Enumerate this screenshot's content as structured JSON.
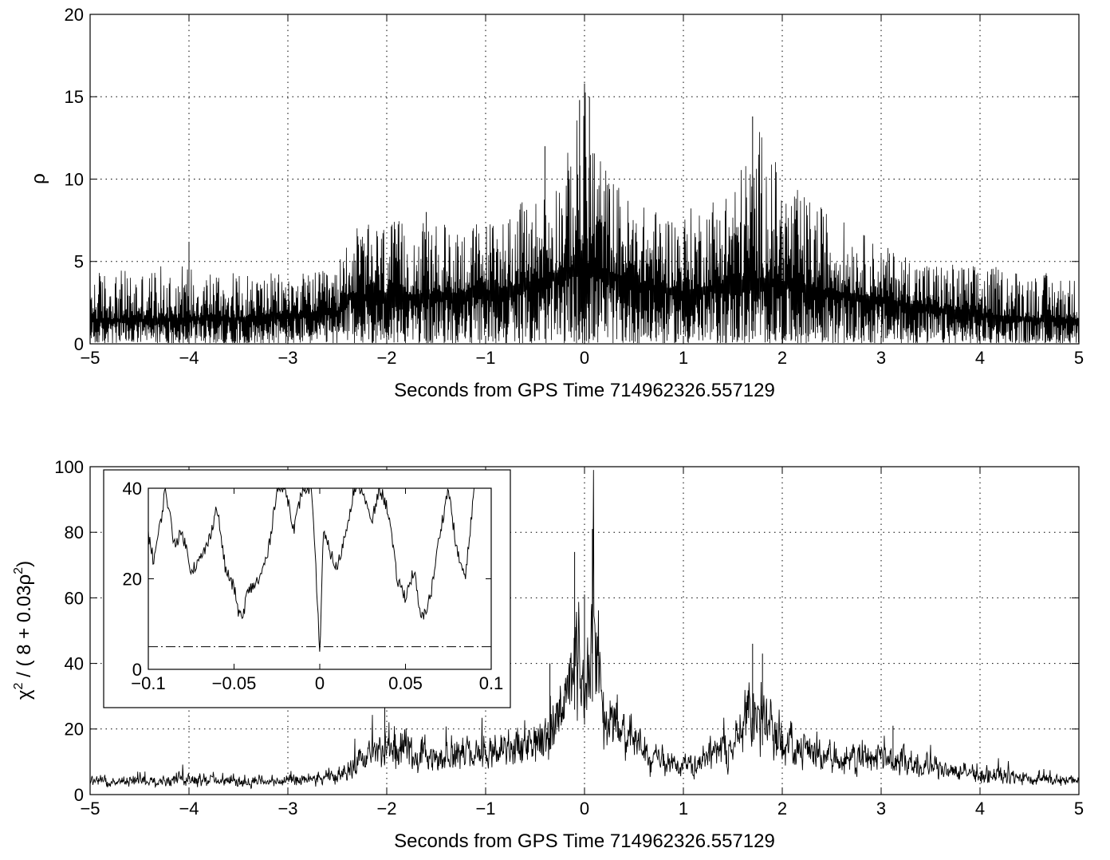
{
  "chart_data": [
    {
      "type": "line",
      "title": "",
      "xlabel": "Seconds from GPS Time 714962326.557129",
      "ylabel": "ρ",
      "xlim": [
        -5,
        5
      ],
      "ylim": [
        0,
        20
      ],
      "xticks": [
        -5,
        -4,
        -3,
        -2,
        -1,
        0,
        1,
        2,
        3,
        4,
        5
      ],
      "xtick_labels": [
        "−5",
        "−4",
        "−3",
        "−2",
        "−1",
        "0",
        "1",
        "2",
        "3",
        "4",
        "5"
      ],
      "yticks": [
        0,
        5,
        10,
        15,
        20
      ],
      "ytick_labels": [
        "0",
        "5",
        "10",
        "15",
        "20"
      ],
      "grid": true,
      "series": [
        {
          "color": "#000000",
          "style": "dense noisy trace",
          "x": [
            -5.0,
            -4.5,
            -4.0,
            -3.5,
            -3.0,
            -2.5,
            -2.4,
            -2.0,
            -1.5,
            -1.0,
            -0.5,
            -0.2,
            0.0,
            0.2,
            0.5,
            1.0,
            1.5,
            1.8,
            2.0,
            2.5,
            3.0,
            3.5,
            4.0,
            4.5,
            5.0
          ],
          "envelope": [
            4.5,
            4.5,
            5.0,
            4.3,
            4.3,
            4.5,
            7.0,
            7.5,
            7.3,
            7.5,
            9.0,
            11.0,
            15.8,
            11.0,
            8.5,
            8.0,
            10.0,
            13.5,
            10.0,
            8.0,
            6.0,
            5.0,
            4.8,
            4.5,
            4.0
          ],
          "baseline": [
            1.5,
            1.5,
            1.6,
            1.6,
            1.8,
            2.0,
            3.0,
            3.0,
            3.0,
            3.2,
            3.8,
            4.5,
            5.0,
            4.5,
            3.8,
            3.2,
            3.8,
            4.0,
            3.8,
            3.2,
            2.8,
            2.2,
            1.8,
            1.6,
            1.5
          ],
          "peaks": [
            {
              "x": 0.0,
              "y": 15.8
            },
            {
              "x": 0.05,
              "y": 15.0
            },
            {
              "x": -0.05,
              "y": 14.8
            },
            {
              "x": 1.7,
              "y": 13.8
            },
            {
              "x": -0.4,
              "y": 12.0
            },
            {
              "x": -1.6,
              "y": 8.0
            },
            {
              "x": -4.0,
              "y": 6.2
            }
          ]
        }
      ]
    },
    {
      "type": "line",
      "title": "",
      "xlabel": "Seconds from GPS Time 714962326.557129",
      "ylabel": "χ² / ( 8 + 0.03ρ² )",
      "ylabel_parts": [
        "χ",
        "2",
        " / ( 8 + 0.03ρ",
        "2",
        ")"
      ],
      "xlim": [
        -5,
        5
      ],
      "ylim": [
        0,
        100
      ],
      "xticks": [
        -5,
        -4,
        -3,
        -2,
        -1,
        0,
        1,
        2,
        3,
        4,
        5
      ],
      "xtick_labels": [
        "−5",
        "−4",
        "−3",
        "−2",
        "−1",
        "0",
        "1",
        "2",
        "3",
        "4",
        "5"
      ],
      "yticks": [
        0,
        20,
        40,
        60,
        80,
        100
      ],
      "ytick_labels": [
        "0",
        "20",
        "40",
        "60",
        "80",
        "100"
      ],
      "grid": true,
      "series": [
        {
          "color": "#000000",
          "style": "noisy trace",
          "x": [
            -5.0,
            -4.5,
            -4.0,
            -3.5,
            -3.0,
            -2.5,
            -2.4,
            -2.0,
            -1.5,
            -1.0,
            -0.5,
            -0.2,
            -0.1,
            0.0,
            0.1,
            0.2,
            0.5,
            1.0,
            1.5,
            1.75,
            2.0,
            2.5,
            3.0,
            3.5,
            4.0,
            4.5,
            5.0
          ],
          "values": [
            4,
            4,
            5,
            4,
            4,
            5,
            8,
            14,
            12,
            12,
            16,
            25,
            45,
            30,
            50,
            25,
            15,
            8,
            15,
            30,
            15,
            12,
            12,
            8,
            6,
            5,
            4
          ],
          "peaks": [
            {
              "x": -0.1,
              "y": 74
            },
            {
              "x": 0.08,
              "y": 81
            },
            {
              "x": 0.0,
              "y": 61
            },
            {
              "x": 1.7,
              "y": 46
            },
            {
              "x": 1.8,
              "y": 43
            },
            {
              "x": -2.02,
              "y": 27
            },
            {
              "x": -0.35,
              "y": 40
            },
            {
              "x": 3.12,
              "y": 21
            }
          ]
        }
      ],
      "inset": {
        "xlim": [
          -0.1,
          0.1
        ],
        "ylim": [
          0,
          40
        ],
        "xticks": [
          -0.1,
          -0.05,
          0,
          0.05,
          0.1
        ],
        "xtick_labels": [
          "−0.1",
          "−0.05",
          "0",
          "0.05",
          "0.1"
        ],
        "yticks": [
          0,
          20,
          40
        ],
        "ytick_labels": [
          "0",
          "20",
          "40"
        ],
        "threshold": 5,
        "threshold_style": "dash-dot",
        "trace": {
          "x": [
            -0.1,
            -0.097,
            -0.093,
            -0.09,
            -0.085,
            -0.08,
            -0.075,
            -0.07,
            -0.065,
            -0.06,
            -0.055,
            -0.05,
            -0.047,
            -0.045,
            -0.043,
            -0.04,
            -0.035,
            -0.03,
            -0.025,
            -0.02,
            -0.015,
            -0.01,
            -0.005,
            -0.002,
            0.0,
            0.002,
            0.005,
            0.01,
            0.015,
            0.02,
            0.025,
            0.03,
            0.035,
            0.04,
            0.045,
            0.05,
            0.055,
            0.058,
            0.06,
            0.065,
            0.07,
            0.075,
            0.08,
            0.085,
            0.09
          ],
          "y": [
            30,
            24,
            32,
            40,
            28,
            30,
            22,
            24,
            28,
            36,
            22,
            18,
            12,
            11,
            16,
            18,
            20,
            26,
            40,
            40,
            31,
            40,
            40,
            20,
            3,
            30,
            27,
            22,
            30,
            40,
            40,
            32,
            40,
            35,
            20,
            16,
            22,
            13,
            11,
            17,
            30,
            40,
            26,
            20,
            40
          ]
        }
      }
    }
  ]
}
